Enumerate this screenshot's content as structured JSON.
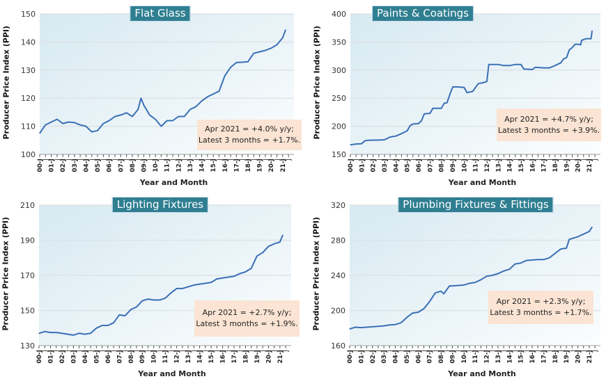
{
  "x_tick_labels": [
    "00-J",
    "01-J",
    "02-J",
    "03-J",
    "04-J",
    "05-J",
    "06-J",
    "07-J",
    "08-J",
    "09-J",
    "10-J",
    "11-J",
    "12-J",
    "13-J",
    "14-J",
    "15-J",
    "16-J",
    "17-J",
    "18-J",
    "19-J",
    "20-J",
    "21-J"
  ],
  "colors": {
    "line": "#3a6fb5",
    "title_bg": "#2f7f91",
    "note_bg": "#fbe4d3"
  },
  "chart_data": [
    {
      "type": "line",
      "title": "Flat Glass",
      "xlabel": "Year and Month",
      "ylabel": "Producer Price Index (PPI)",
      "ylim": [
        100,
        150
      ],
      "yticks": [
        100,
        110,
        120,
        130,
        140,
        150
      ],
      "grid": true,
      "annotation": [
        "Apr 2021 = +4.0% y/y;",
        "Latest 3 months = +1.7%."
      ],
      "x": [
        "2000-01",
        "2000-07",
        "2001-01",
        "2001-07",
        "2002-01",
        "2002-07",
        "2003-01",
        "2003-07",
        "2004-01",
        "2004-07",
        "2005-01",
        "2005-07",
        "2006-01",
        "2006-07",
        "2007-01",
        "2007-07",
        "2008-01",
        "2008-07",
        "2008-10",
        "2009-01",
        "2009-07",
        "2010-01",
        "2010-07",
        "2011-01",
        "2011-07",
        "2012-01",
        "2012-07",
        "2013-01",
        "2013-07",
        "2014-01",
        "2014-07",
        "2015-01",
        "2015-07",
        "2016-01",
        "2016-07",
        "2017-01",
        "2017-07",
        "2018-01",
        "2018-07",
        "2019-01",
        "2019-07",
        "2020-01",
        "2020-07",
        "2021-01",
        "2021-04"
      ],
      "values": [
        107.5,
        110.5,
        111.5,
        112.5,
        111,
        111.5,
        111.3,
        110.5,
        110,
        108,
        108.5,
        111,
        112,
        113.5,
        114,
        114.8,
        113.5,
        116,
        120,
        117.5,
        114,
        112.5,
        110,
        112,
        112,
        113.5,
        113.5,
        116,
        117,
        119,
        120.5,
        121.5,
        122.5,
        128,
        131,
        132.7,
        132.8,
        133,
        136,
        136.5,
        137,
        137.8,
        139,
        141.5,
        144.3
      ]
    },
    {
      "type": "line",
      "title": "Paints & Coatings",
      "xlabel": "Year and Month",
      "ylabel": "Producer Price Index (PPI)",
      "ylim": [
        150,
        400
      ],
      "yticks": [
        150,
        200,
        250,
        300,
        350,
        400
      ],
      "grid": true,
      "annotation": [
        "Apr 2021 = +4.7% y/y;",
        "Latest 3 months = +3.9%."
      ],
      "x": [
        "2000-01",
        "2000-07",
        "2001-01",
        "2001-04",
        "2001-07",
        "2002-07",
        "2003-01",
        "2003-07",
        "2004-01",
        "2004-07",
        "2005-01",
        "2005-04",
        "2005-07",
        "2006-01",
        "2006-04",
        "2006-07",
        "2007-01",
        "2007-04",
        "2008-01",
        "2008-04",
        "2008-07",
        "2008-10",
        "2009-01",
        "2009-07",
        "2010-01",
        "2010-04",
        "2010-10",
        "2011-01",
        "2011-04",
        "2011-10",
        "2012-01",
        "2012-03",
        "2013-01",
        "2013-07",
        "2014-01",
        "2014-07",
        "2015-01",
        "2015-04",
        "2016-01",
        "2016-04",
        "2017-01",
        "2017-07",
        "2018-01",
        "2018-07",
        "2018-10",
        "2019-01",
        "2019-04",
        "2019-07",
        "2019-10",
        "2020-01",
        "2020-04",
        "2020-05",
        "2020-10",
        "2021-01",
        "2021-03",
        "2021-04"
      ],
      "values": [
        167,
        168.5,
        169,
        174,
        175,
        175.5,
        176,
        181,
        182.5,
        187,
        192,
        201,
        204,
        205,
        210,
        222,
        223,
        232,
        232,
        241,
        242,
        257,
        270,
        270,
        269,
        260,
        262,
        269,
        276,
        278,
        280,
        310,
        310,
        308,
        308,
        310,
        310,
        302,
        301,
        305,
        304,
        304,
        308,
        313,
        320,
        322,
        336,
        340,
        346,
        346,
        345,
        353,
        356,
        356,
        356,
        370
      ]
    },
    {
      "type": "line",
      "title": "Lighting Fixtures",
      "xlabel": "Year and Month",
      "ylabel": "Producer Price Index (PPI)",
      "ylim": [
        130,
        210
      ],
      "yticks": [
        130,
        150,
        170,
        190,
        210
      ],
      "grid": true,
      "annotation": [
        "Apr 2021 = +2.7% y/y;",
        "Latest 3 months = +1.9%."
      ],
      "x": [
        "2000-01",
        "2000-07",
        "2001-01",
        "2001-07",
        "2002-01",
        "2002-07",
        "2003-01",
        "2003-07",
        "2004-01",
        "2004-07",
        "2005-01",
        "2005-07",
        "2006-01",
        "2006-07",
        "2007-01",
        "2007-07",
        "2008-01",
        "2008-07",
        "2009-01",
        "2009-07",
        "2010-01",
        "2010-07",
        "2011-01",
        "2011-07",
        "2012-01",
        "2012-07",
        "2013-01",
        "2013-07",
        "2014-01",
        "2014-07",
        "2015-01",
        "2015-07",
        "2016-01",
        "2016-07",
        "2017-01",
        "2017-07",
        "2018-01",
        "2018-07",
        "2019-01",
        "2019-07",
        "2020-01",
        "2020-07",
        "2021-01",
        "2021-04"
      ],
      "values": [
        137,
        138,
        137.5,
        137.5,
        137,
        136.5,
        136,
        137,
        136.5,
        137,
        140,
        141.5,
        141.5,
        143,
        147.5,
        147,
        150.5,
        152,
        155.5,
        156.5,
        156,
        156,
        157,
        160,
        162.5,
        162.5,
        163.5,
        164.5,
        165,
        165.5,
        166,
        168,
        168.5,
        169,
        169.5,
        171,
        172,
        174,
        181,
        183,
        186.5,
        188,
        189,
        193
      ]
    },
    {
      "type": "line",
      "title": "Plumbing Fixtures & Fittings",
      "xlabel": "Year and Month",
      "ylabel": "Producer Price Index (PPI)",
      "ylim": [
        160,
        320
      ],
      "yticks": [
        160,
        200,
        240,
        280,
        320
      ],
      "grid": true,
      "annotation": [
        "Apr 2021 = +2.3% y/y;",
        "Latest 3 months = +1.7%."
      ],
      "x": [
        "2000-01",
        "2000-07",
        "2001-01",
        "2001-07",
        "2002-01",
        "2002-07",
        "2003-01",
        "2003-07",
        "2004-01",
        "2004-07",
        "2005-01",
        "2005-07",
        "2006-01",
        "2006-07",
        "2007-01",
        "2007-07",
        "2008-01",
        "2008-04",
        "2008-10",
        "2009-01",
        "2009-07",
        "2010-01",
        "2010-07",
        "2011-01",
        "2011-07",
        "2012-01",
        "2012-07",
        "2013-01",
        "2013-07",
        "2014-01",
        "2014-07",
        "2015-01",
        "2015-07",
        "2016-01",
        "2016-07",
        "2017-01",
        "2017-07",
        "2018-01",
        "2018-07",
        "2019-01",
        "2019-04",
        "2019-10",
        "2020-01",
        "2020-07",
        "2021-01",
        "2021-04"
      ],
      "values": [
        179,
        181,
        180.5,
        181,
        181.5,
        182,
        182.5,
        183.5,
        184,
        186,
        192,
        197,
        198,
        202,
        210,
        220,
        222,
        219,
        228,
        228,
        228.5,
        229,
        231,
        232,
        235,
        239,
        240,
        242,
        245,
        247,
        253,
        254,
        257,
        257.5,
        258,
        258,
        260,
        265,
        270,
        271,
        281,
        283,
        284,
        287,
        290,
        295
      ]
    }
  ]
}
